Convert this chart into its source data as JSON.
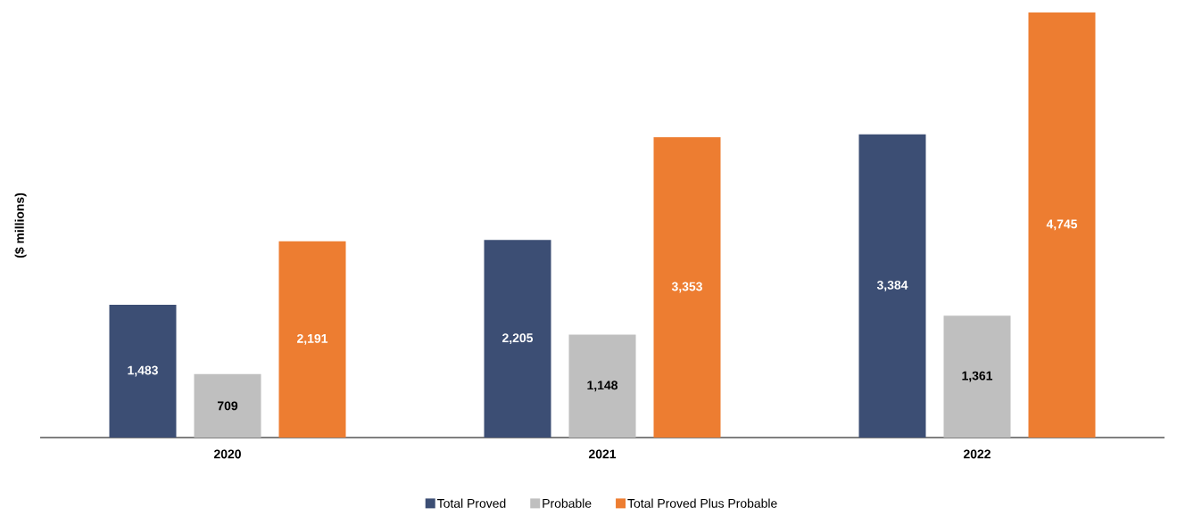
{
  "chart_data": {
    "type": "bar",
    "ylabel": "($ millions)",
    "categories": [
      "2020",
      "2021",
      "2022"
    ],
    "series": [
      {
        "name": "Total Proved",
        "color": "#3c4e74",
        "values": [
          1483,
          2205,
          3384
        ],
        "value_labels": [
          "1,483",
          "2,205",
          "3,384"
        ]
      },
      {
        "name": "Probable",
        "color": "#bfbfbf",
        "values": [
          709,
          1148,
          1361
        ],
        "value_labels": [
          "709",
          "1,148",
          "1,361"
        ]
      },
      {
        "name": "Total Proved Plus Probable",
        "color": "#ed7d31",
        "values": [
          2191,
          3353,
          4745
        ],
        "value_labels": [
          "2,191",
          "3,353",
          "4,745"
        ]
      }
    ],
    "legend": "bottom"
  }
}
